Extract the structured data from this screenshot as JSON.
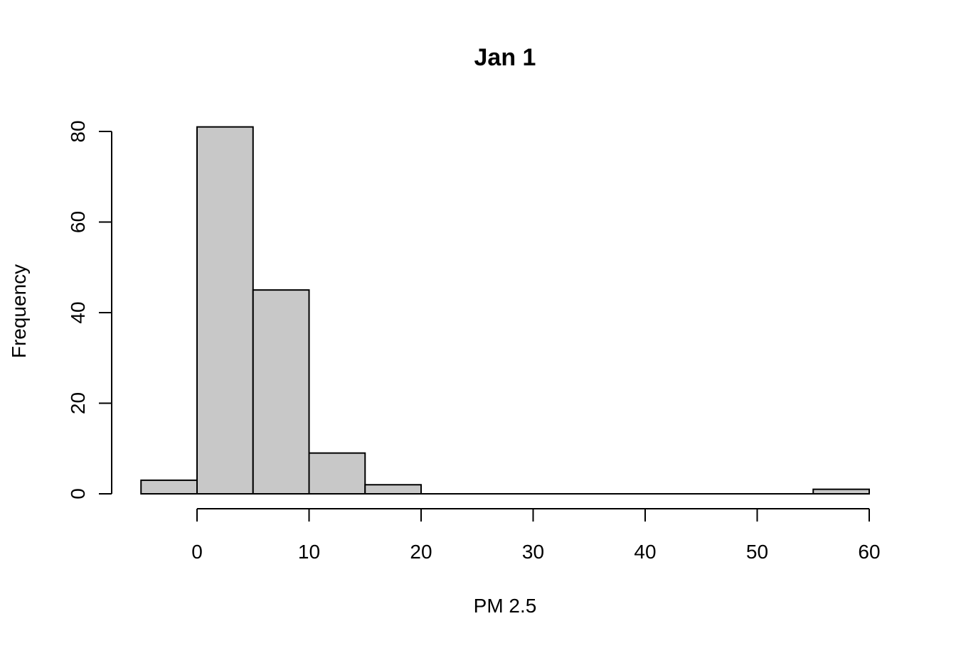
{
  "chart_data": {
    "type": "bar",
    "title": "Jan 1",
    "xlabel": "PM 2.5",
    "ylabel": "Frequency",
    "bins": [
      {
        "start": -5,
        "end": 0,
        "count": 3
      },
      {
        "start": 0,
        "end": 5,
        "count": 81
      },
      {
        "start": 5,
        "end": 10,
        "count": 45
      },
      {
        "start": 10,
        "end": 15,
        "count": 9
      },
      {
        "start": 15,
        "end": 20,
        "count": 2
      },
      {
        "start": 20,
        "end": 25,
        "count": 0
      },
      {
        "start": 25,
        "end": 30,
        "count": 0
      },
      {
        "start": 30,
        "end": 35,
        "count": 0
      },
      {
        "start": 35,
        "end": 40,
        "count": 0
      },
      {
        "start": 40,
        "end": 45,
        "count": 0
      },
      {
        "start": 45,
        "end": 50,
        "count": 0
      },
      {
        "start": 50,
        "end": 55,
        "count": 0
      },
      {
        "start": 55,
        "end": 60,
        "count": 1
      }
    ],
    "xticks": [
      0,
      10,
      20,
      30,
      40,
      50,
      60
    ],
    "xtick_labels": [
      "0",
      "10",
      "20",
      "30",
      "40",
      "50",
      "60"
    ],
    "yticks": [
      0,
      20,
      40,
      60,
      80
    ],
    "ytick_labels": [
      "0",
      "20",
      "40",
      "60",
      "80"
    ],
    "xlim": [
      -5,
      60
    ],
    "ylim": [
      0,
      80
    ],
    "grid": false,
    "bar_color": "#c8c8c8",
    "border_color": "#000000"
  }
}
